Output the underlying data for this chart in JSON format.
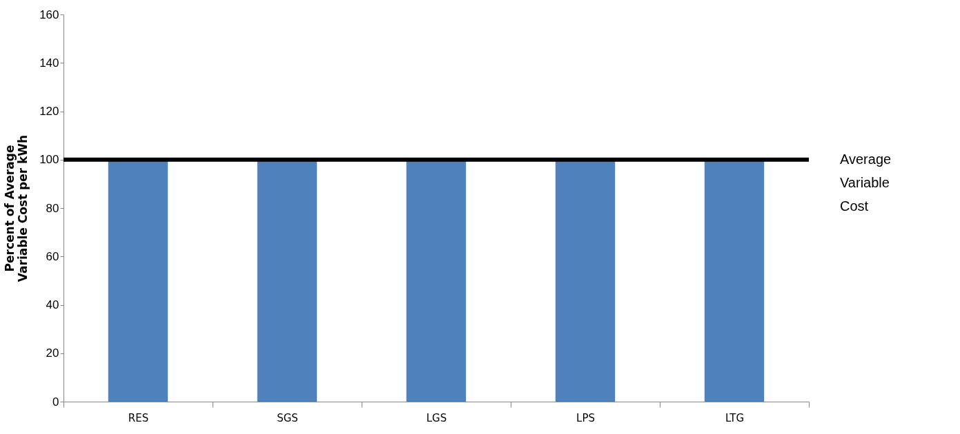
{
  "chart_data": {
    "type": "bar",
    "ylabel": "Percent of Average\nVariable Cost per kWh",
    "categories": [
      "RES",
      "SGS",
      "LGS",
      "LPS",
      "LTG"
    ],
    "series": [
      {
        "color": "#4f81bd",
        "values": [
          100,
          100,
          100,
          100,
          100
        ]
      }
    ],
    "ylim": [
      0,
      160
    ],
    "yticks": [
      0,
      20,
      40,
      60,
      80,
      100,
      120,
      140,
      160
    ],
    "ref_lines": [
      {
        "axis": "y",
        "value": 100,
        "label": "Average\nVariable\nCost",
        "color": "#000000"
      }
    ],
    "grid": false
  }
}
